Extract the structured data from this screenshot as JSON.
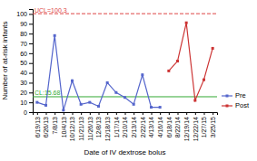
{
  "chart_data": {
    "type": "line",
    "categories": [
      "6/19/13",
      "6/26/13",
      "7/8/13",
      "10/4/13",
      "10/12/13",
      "11/21/13",
      "11/26/13",
      "12/8/13",
      "12/18/13",
      "1/17/14",
      "2/10/14",
      "2/13/14",
      "2/22/14",
      "4/13/14",
      "4/16/14",
      "6/18/14",
      "8/22/14",
      "12/19/14",
      "12/22/14",
      "1/27/15",
      "3/25/15"
    ],
    "series": [
      {
        "name": "Pre",
        "color": "#5566cc",
        "marker": "square",
        "line_style": "solid",
        "values": [
          10,
          7,
          78,
          2,
          32,
          8,
          10,
          6,
          30,
          20,
          15,
          8,
          38,
          5,
          5,
          null,
          null,
          null,
          null,
          null,
          null
        ]
      },
      {
        "name": "Post",
        "color": "#cc3333",
        "marker": "square",
        "line_style": "solid",
        "values": [
          null,
          null,
          null,
          null,
          null,
          null,
          null,
          null,
          null,
          null,
          null,
          null,
          null,
          null,
          null,
          42,
          52,
          91,
          12,
          33,
          65
        ]
      }
    ],
    "annotations": [
      {
        "text": "UCL=100.3",
        "y": 100.3,
        "color": "#dd4444",
        "line_style": "dashed"
      },
      {
        "text": "CL:15.68",
        "y": 15.68,
        "color": "#33aa33",
        "line_style": "solid"
      }
    ],
    "x_label": "Date of IV dextrose bolus",
    "y_label": "Number of at-risk infants",
    "ylim": [
      0,
      105
    ],
    "yticks": [
      0,
      10,
      20,
      30,
      40,
      50,
      60,
      70,
      80,
      90,
      100
    ],
    "grid": false,
    "legend": "lower right"
  }
}
